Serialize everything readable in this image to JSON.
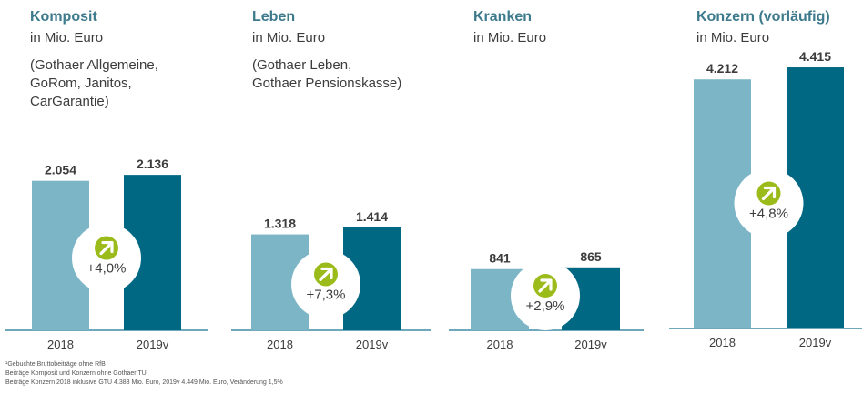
{
  "colors": {
    "accent": "#3d7a8c",
    "bar_2018": "#7cb5c6",
    "bar_2019": "#006882",
    "badge": "#9bbb1a",
    "text": "#3c3c3c",
    "divider": "#6fa8ba"
  },
  "chart_data": [
    {
      "type": "bar",
      "title": "Komposit",
      "unit": "in Mio. Euro",
      "note": "(Gothaer Allgemeine,\nGoRom, Janitos,\nCarGarantie)",
      "categories": [
        "2018",
        "2019v"
      ],
      "values": [
        2054,
        2136
      ],
      "value_labels": [
        "2.054",
        "2.136"
      ],
      "change": "+4,0%",
      "change_icon": "arrow-up-right-icon"
    },
    {
      "type": "bar",
      "title": "Leben",
      "unit": "in Mio. Euro",
      "note": "(Gothaer Leben,\nGothaer Pensionskasse)",
      "categories": [
        "2018",
        "2019v"
      ],
      "values": [
        1318,
        1414
      ],
      "value_labels": [
        "1.318",
        "1.414"
      ],
      "change": "+7,3%",
      "change_icon": "arrow-up-right-icon"
    },
    {
      "type": "bar",
      "title": "Kranken",
      "unit": "in Mio. Euro",
      "note": "",
      "categories": [
        "2018",
        "2019v"
      ],
      "values": [
        841,
        865
      ],
      "value_labels": [
        "841",
        "865"
      ],
      "change": "+2,9%",
      "change_icon": "arrow-up-right-icon"
    },
    {
      "type": "bar",
      "title": "Konzern (vorläufig)",
      "unit": "in Mio. Euro",
      "note": "",
      "categories": [
        "2018",
        "2019v"
      ],
      "values": [
        4212,
        4415
      ],
      "value_labels": [
        "4.212",
        "4.415"
      ],
      "change": "+4,8%",
      "change_icon": "arrow-up-right-icon"
    }
  ],
  "footnotes": [
    "¹Gebuchte Bruttobeiträge ohne RfB",
    "Beiträge Komposit und Konzern ohne Gothaer TU.",
    "Beiträge Konzern 2018 inklusive GTU 4.383 Mio. Euro, 2019v 4.449 Mio. Euro, Veränderung 1,5%"
  ]
}
